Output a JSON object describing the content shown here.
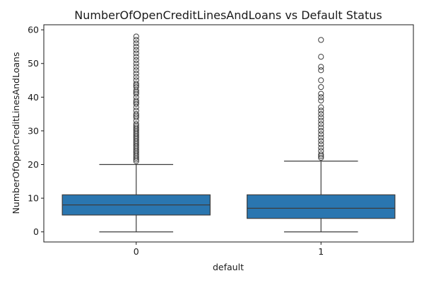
{
  "chart_data": {
    "type": "boxplot",
    "title": "NumberOfOpenCreditLinesAndLoans vs Default Status",
    "xlabel": "default",
    "ylabel": "NumberOfOpenCreditLinesAndLoans",
    "categories": [
      "0",
      "1"
    ],
    "ylim": [
      -3,
      61.5
    ],
    "yticks": [
      0,
      10,
      20,
      30,
      40,
      50,
      60
    ],
    "grid": false,
    "box_color": "#2a76b0",
    "line_color": "#3d3d3d",
    "boxes": [
      {
        "category": "0",
        "whisker_low": 0,
        "q1": 5,
        "median": 8,
        "q3": 11,
        "whisker_high": 20,
        "outliers": [
          21,
          21.5,
          22,
          22.5,
          23,
          23.5,
          24,
          24.5,
          25,
          25.5,
          26,
          26.5,
          27,
          27.5,
          28,
          28.5,
          29,
          29.5,
          30,
          30.5,
          31,
          31.5,
          32,
          33,
          34,
          34.5,
          35,
          36,
          37,
          38,
          38.5,
          39,
          40,
          41,
          41.5,
          42,
          43,
          43.5,
          44,
          45,
          46,
          47,
          48,
          49,
          50,
          51,
          52,
          53,
          54,
          55,
          56,
          57,
          58
        ]
      },
      {
        "category": "1",
        "whisker_low": 0,
        "q1": 4,
        "median": 7,
        "q3": 11,
        "whisker_high": 21,
        "outliers": [
          22,
          22.5,
          23,
          24,
          25,
          26,
          27,
          28,
          29,
          30,
          31,
          32,
          33,
          34,
          35,
          36,
          37,
          39,
          40,
          41,
          43,
          45,
          48,
          49,
          52,
          57
        ]
      }
    ]
  }
}
